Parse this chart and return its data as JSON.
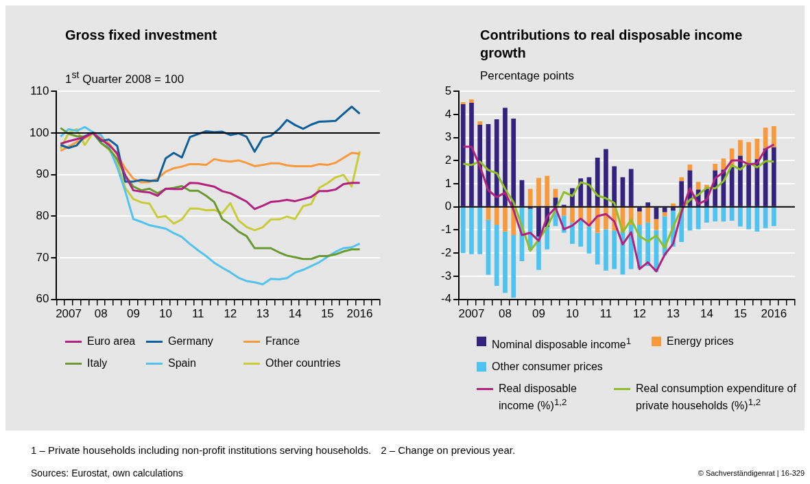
{
  "chart_data": [
    {
      "type": "line",
      "title": "Gross fixed investment",
      "subtitle": "1$^{st}$ Quarter 2008 = 100",
      "categories": [
        null,
        "2007",
        null,
        null,
        null,
        "08",
        null,
        null,
        null,
        "09",
        null,
        null,
        null,
        "10",
        null,
        null,
        null,
        "11",
        null,
        null,
        null,
        "12",
        null,
        null,
        null,
        "13",
        null,
        null,
        null,
        "14",
        null,
        null,
        null,
        "15",
        null,
        null,
        null,
        "2016",
        null,
        null
      ],
      "ylim": [
        60,
        110
      ],
      "yticks": [
        60,
        70,
        80,
        90,
        100,
        110
      ],
      "grid": "y",
      "legend": "bottom",
      "ref_lines": [
        {
          "axis": "y",
          "value": 100,
          "color": "#000000"
        }
      ],
      "series": [
        {
          "name": "Euro area",
          "color": "#b3217f",
          "values": [
            97.4,
            98.0,
            98.5,
            99.0,
            100,
            98.4,
            97.1,
            95.1,
            89.8,
            86.2,
            85.9,
            85.7,
            84.9,
            86.6,
            86.5,
            86.5,
            88.0,
            87.9,
            87.5,
            87.1,
            86.0,
            85.5,
            84.5,
            83.5,
            81.7,
            82.5,
            83.4,
            83.6,
            83.9,
            83.6,
            84.1,
            84.6,
            86.0,
            86.0,
            86.4,
            87.7,
            88.0,
            88.0,
            null,
            null
          ]
        },
        {
          "name": "Germany",
          "color": "#0d5f9b",
          "values": [
            97.1,
            96.4,
            97.0,
            99.2,
            100,
            98.1,
            98.4,
            96.9,
            88.3,
            88.3,
            88.7,
            88.5,
            88.5,
            93.9,
            95.2,
            94.1,
            99.0,
            99.7,
            100.4,
            100.2,
            100.3,
            99.5,
            99.9,
            99.1,
            95.5,
            98.8,
            99.3,
            100.9,
            103.1,
            101.9,
            101.0,
            102.0,
            102.7,
            102.8,
            102.9,
            104.6,
            106.3,
            104.6,
            null,
            null
          ]
        },
        {
          "name": "France",
          "color": "#f89a3c",
          "values": [
            95.7,
            96.7,
            97.8,
            98.7,
            100,
            98.7,
            97.5,
            94.8,
            91.5,
            89.0,
            88.1,
            88.2,
            89.0,
            90.7,
            91.5,
            91.9,
            92.5,
            92.5,
            92.3,
            93.7,
            93.3,
            93.1,
            93.4,
            92.8,
            92.0,
            92.3,
            92.7,
            92.7,
            92.2,
            92.0,
            92.0,
            92.0,
            92.5,
            92.3,
            92.8,
            94.0,
            95.2,
            95.0,
            null,
            null
          ]
        },
        {
          "name": "Italy",
          "color": "#679a30",
          "values": [
            101.2,
            99.8,
            99.2,
            99.1,
            100,
            97.6,
            96.2,
            93.7,
            89.8,
            87.1,
            86.2,
            86.6,
            85.5,
            86.5,
            86.8,
            87.2,
            86.1,
            86.1,
            84.9,
            83.4,
            79.3,
            78.0,
            76.3,
            75.2,
            72.3,
            72.3,
            72.3,
            71.3,
            70.5,
            70.1,
            69.7,
            69.7,
            70.4,
            70.4,
            70.8,
            71.5,
            72.0,
            72.0,
            null,
            null
          ]
        },
        {
          "name": "Spain",
          "color": "#52c3ef",
          "values": [
            99.1,
            100.9,
            100.5,
            101.4,
            100.2,
            99.5,
            96.5,
            91.8,
            86.0,
            79.3,
            78.6,
            77.8,
            77.4,
            77.0,
            75.9,
            75.0,
            73.3,
            71.8,
            70.4,
            68.8,
            67.6,
            66.5,
            65.2,
            64.4,
            64.1,
            63.6,
            64.9,
            64.8,
            65.1,
            66.4,
            67.1,
            68.0,
            68.9,
            70.2,
            71.4,
            72.3,
            72.5,
            73.4,
            null,
            null
          ]
        },
        {
          "name": "Other countries",
          "color": "#c9cc36",
          "values": [
            96.2,
            100,
            100.9,
            97.1,
            100,
            97.7,
            95.9,
            92.9,
            86.8,
            84.1,
            83.3,
            83.0,
            79.7,
            80.0,
            78.2,
            79.2,
            81.8,
            81.8,
            81.4,
            81.5,
            80.7,
            83.1,
            79.0,
            77.4,
            76.6,
            77.3,
            79.2,
            79.2,
            79.9,
            79.3,
            82.4,
            82.9,
            86.8,
            87.9,
            89.3,
            89.9,
            87.1,
            95.6,
            null,
            null
          ]
        }
      ]
    },
    {
      "type": "bar",
      "title": "Contributions to real disposable income growth",
      "subtitle": "Percentage points",
      "stacked": true,
      "categories": [
        null,
        "2007",
        null,
        null,
        null,
        "08",
        null,
        null,
        null,
        "09",
        null,
        null,
        null,
        "10",
        null,
        null,
        null,
        "11",
        null,
        null,
        null,
        "12",
        null,
        null,
        null,
        "13",
        null,
        null,
        null,
        "14",
        null,
        null,
        null,
        "15",
        null,
        null,
        null,
        "2016",
        null,
        null
      ],
      "ylim": [
        -4,
        5
      ],
      "yticks": [
        -4,
        -3,
        -2,
        -1,
        0,
        1,
        2,
        3,
        4,
        5
      ],
      "grid": "y",
      "legend": "bottom",
      "ref_lines": [
        {
          "axis": "y",
          "value": 0,
          "color": "#000000"
        }
      ],
      "series": [
        {
          "name": "Nominal disposable income$^{1}$",
          "type": "bar",
          "color": "#33237e",
          "values": [
            4.44,
            4.5,
            3.55,
            3.58,
            3.79,
            4.29,
            3.82,
            1.16,
            -0.08,
            -1.28,
            -0.87,
            0.4,
            0.09,
            0.81,
            1.23,
            1.28,
            2.13,
            2.5,
            1.76,
            1.28,
            1.64,
            -0.2,
            0.19,
            -0.53,
            -0.23,
            -0.16,
            1.11,
            1.58,
            0.75,
            0.79,
            1.58,
            1.61,
            1.71,
            2.21,
            1.86,
            2.06,
            2.53,
            2.57,
            null,
            null
          ]
        },
        {
          "name": "Energy prices",
          "type": "bar",
          "color": "#f89a3c",
          "values": [
            0.09,
            0.15,
            0.15,
            -0.56,
            -0.78,
            -1.07,
            -1.22,
            null,
            0.78,
            1.25,
            1.34,
            0.38,
            -0.38,
            -0.68,
            -0.58,
            -0.85,
            -1.12,
            -0.97,
            -1.02,
            -1.07,
            -0.78,
            -0.58,
            -0.68,
            -0.47,
            -0.18,
            0.15,
            0.17,
            0.25,
            0.33,
            0.17,
            0.28,
            0.48,
            0.82,
            0.68,
            0.94,
            0.89,
            0.9,
            0.92,
            null,
            null
          ]
        },
        {
          "name": "Other consumer prices",
          "type": "bar",
          "color": "#4cc3f0",
          "values": [
            -2.0,
            -2.05,
            -2.05,
            -2.38,
            -2.64,
            -2.65,
            -2.71,
            -2.35,
            -1.79,
            -1.45,
            -0.97,
            -0.83,
            -0.74,
            -0.92,
            -1.14,
            -1.17,
            -1.37,
            -1.79,
            -1.67,
            -1.86,
            -1.91,
            -1.88,
            -1.88,
            -1.81,
            -1.69,
            -1.56,
            -1.52,
            -1.02,
            -0.97,
            -0.68,
            -0.63,
            -0.63,
            -0.6,
            -0.85,
            -0.97,
            -1.07,
            -0.92,
            -0.83,
            null,
            null
          ]
        },
        {
          "name": "Real disposable income (%)$^{1,2}$",
          "type": "line",
          "color": "#b3217f",
          "values": [
            2.6,
            2.6,
            1.76,
            0.72,
            0.42,
            0.62,
            -0.13,
            -1.22,
            -1.12,
            -1.47,
            -0.43,
            -0.03,
            -0.97,
            -0.81,
            -0.51,
            -0.81,
            -0.4,
            -0.31,
            -0.63,
            -1.62,
            -1.1,
            -2.69,
            -2.4,
            -2.79,
            -2.07,
            -1.6,
            -0.23,
            0.8,
            0.12,
            0.3,
            1.23,
            1.51,
            2.01,
            2.01,
            1.84,
            1.88,
            2.5,
            2.7,
            null,
            null
          ]
        },
        {
          "name": "Real consumption expenditure of private households (%)$^{1,2}$",
          "type": "line",
          "color": "#8dbf27",
          "values": [
            1.86,
            1.81,
            1.96,
            1.59,
            1.46,
            0.77,
            0.2,
            -0.83,
            -1.9,
            -1.42,
            -0.87,
            -0.13,
            0.64,
            0.47,
            1.06,
            0.96,
            0.49,
            0.37,
            0.17,
            -1.1,
            -0.55,
            -1.27,
            -1.49,
            -1.24,
            -1.77,
            -0.87,
            -0.08,
            0.3,
            0.52,
            0.83,
            0.8,
            1.11,
            1.81,
            1.61,
            1.93,
            1.71,
            1.98,
            1.96,
            null,
            null
          ]
        }
      ],
      "annotations": [
        "1 – Private households including non-profit institutions serving households.",
        "2 – Change on previous year.",
        "Sources: Eurostat, own calculations",
        "© Sachverständigenrat | 16-329"
      ]
    }
  ]
}
